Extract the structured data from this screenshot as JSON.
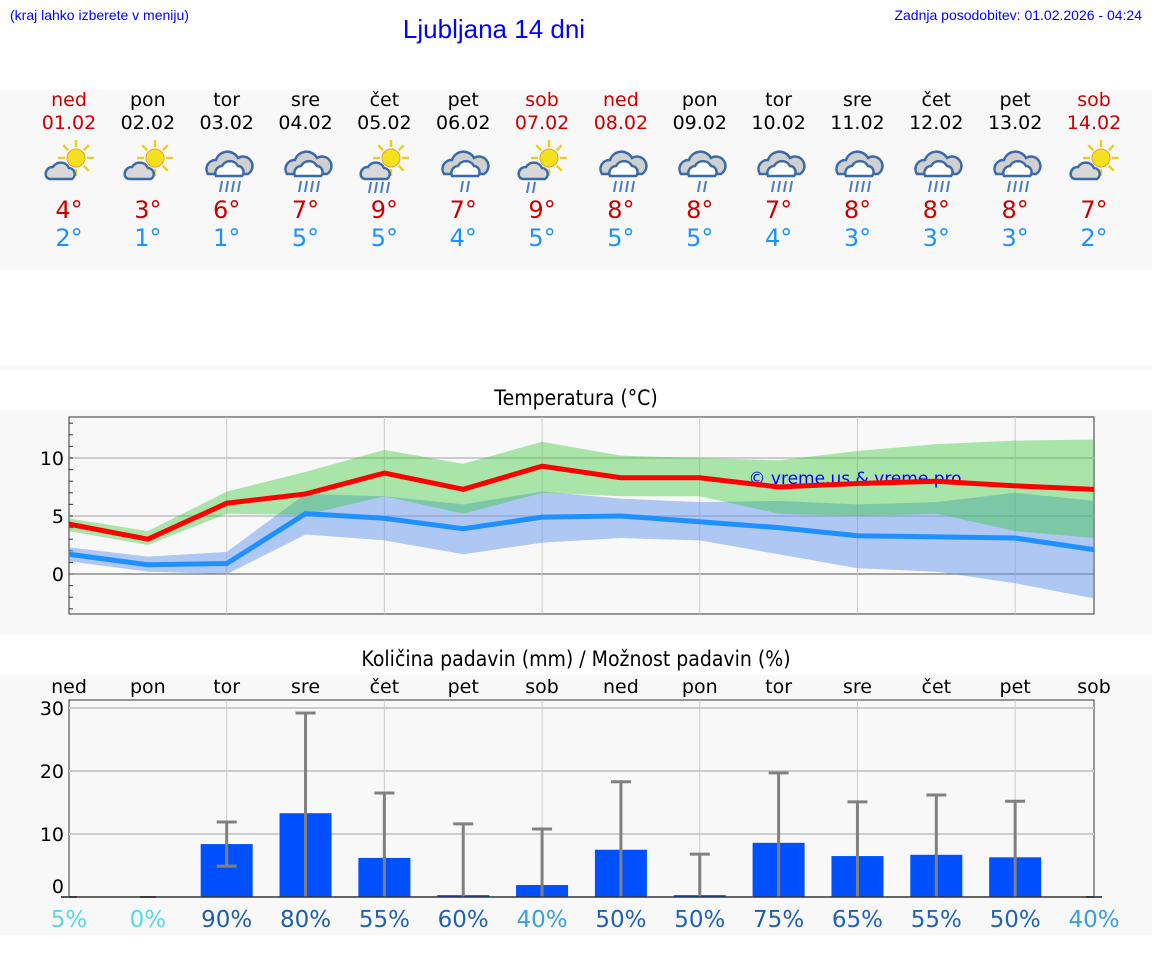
{
  "header": {
    "hint": "(kraj lahko izberete v meniju)",
    "title": "Ljubljana 14 dni",
    "updated": "Zadnja posodobitev: 01.02.2026 - 04:24"
  },
  "colors": {
    "weekend": "#cc0000",
    "weekday": "#000000",
    "max": "#ff0000",
    "min": "#1e90ff",
    "bar": "#0050ff"
  },
  "days": [
    {
      "name": "ned",
      "date": "01.02",
      "weekend": true,
      "icon": "partly-cloudy-icon",
      "max": "4°",
      "min": "2°"
    },
    {
      "name": "pon",
      "date": "02.02",
      "weekend": false,
      "icon": "partly-cloudy-icon",
      "max": "3°",
      "min": "1°"
    },
    {
      "name": "tor",
      "date": "03.02",
      "weekend": false,
      "icon": "rain-heavy-icon",
      "max": "6°",
      "min": "1°"
    },
    {
      "name": "sre",
      "date": "04.02",
      "weekend": false,
      "icon": "rain-heavy-icon",
      "max": "7°",
      "min": "5°"
    },
    {
      "name": "čet",
      "date": "05.02",
      "weekend": false,
      "icon": "sun-cloud-rain-heavy-icon",
      "max": "9°",
      "min": "5°"
    },
    {
      "name": "pet",
      "date": "06.02",
      "weekend": false,
      "icon": "rain-light-icon",
      "max": "7°",
      "min": "4°"
    },
    {
      "name": "sob",
      "date": "07.02",
      "weekend": true,
      "icon": "sun-cloud-rain-light-icon",
      "max": "9°",
      "min": "5°"
    },
    {
      "name": "ned",
      "date": "08.02",
      "weekend": true,
      "icon": "rain-heavy-icon",
      "max": "8°",
      "min": "5°"
    },
    {
      "name": "pon",
      "date": "09.02",
      "weekend": false,
      "icon": "rain-light-icon",
      "max": "8°",
      "min": "5°"
    },
    {
      "name": "tor",
      "date": "10.02",
      "weekend": false,
      "icon": "rain-heavy-icon",
      "max": "7°",
      "min": "4°"
    },
    {
      "name": "sre",
      "date": "11.02",
      "weekend": false,
      "icon": "rain-heavy-icon",
      "max": "8°",
      "min": "3°"
    },
    {
      "name": "čet",
      "date": "12.02",
      "weekend": false,
      "icon": "rain-heavy-icon",
      "max": "8°",
      "min": "3°"
    },
    {
      "name": "pet",
      "date": "13.02",
      "weekend": false,
      "icon": "rain-heavy-icon",
      "max": "8°",
      "min": "3°"
    },
    {
      "name": "sob",
      "date": "14.02",
      "weekend": true,
      "icon": "partly-cloudy-icon",
      "max": "7°",
      "min": "2°"
    }
  ],
  "chart_data": [
    {
      "type": "line",
      "title": "Temperatura (°C)",
      "ylim": [
        -3.5,
        13.5
      ],
      "yticks": [
        0,
        5,
        10
      ],
      "watermark": "© vreme.us & vreme.pro",
      "series": [
        {
          "name": "max",
          "values": [
            4.3,
            3.0,
            6.1,
            6.9,
            8.7,
            7.3,
            9.3,
            8.3,
            8.3,
            7.5,
            7.8,
            8.0,
            7.6,
            7.3
          ],
          "band_high": [
            4.8,
            3.7,
            7.1,
            8.8,
            10.7,
            9.5,
            11.4,
            10.2,
            10.0,
            9.8,
            10.6,
            11.2,
            11.5,
            11.6
          ],
          "band_low": [
            3.7,
            2.5,
            5.2,
            5.1,
            6.7,
            5.2,
            7.0,
            6.7,
            6.7,
            5.2,
            5.0,
            5.2,
            3.7,
            3.1
          ]
        },
        {
          "name": "min",
          "values": [
            1.7,
            0.8,
            0.9,
            5.2,
            4.8,
            3.9,
            4.9,
            5.0,
            4.5,
            4.0,
            3.3,
            3.2,
            3.1,
            2.1
          ],
          "band_high": [
            2.3,
            1.5,
            1.9,
            6.9,
            6.7,
            6.0,
            7.1,
            6.5,
            6.2,
            6.3,
            6.0,
            6.2,
            7.0,
            6.3
          ],
          "band_low": [
            1.1,
            0.2,
            0.0,
            3.4,
            2.9,
            1.7,
            2.7,
            3.1,
            2.9,
            1.7,
            0.5,
            0.2,
            -0.8,
            -2.1
          ]
        }
      ]
    },
    {
      "type": "bar",
      "title": "Količina padavin (mm) / Možnost padavin (%)",
      "ylim": [
        0,
        31
      ],
      "yticks": [
        0,
        10,
        20,
        30
      ],
      "categories": [
        "ned",
        "pon",
        "tor",
        "sre",
        "čet",
        "pet",
        "sob",
        "ned",
        "pon",
        "tor",
        "sre",
        "čet",
        "pet",
        "sob"
      ],
      "values": [
        0,
        0,
        8.4,
        13.3,
        6.2,
        0.3,
        1.9,
        7.5,
        0.3,
        8.6,
        6.5,
        6.7,
        6.3,
        0
      ],
      "err_high": [
        0,
        0,
        11.9,
        29.2,
        16.5,
        11.6,
        10.8,
        18.3,
        6.8,
        19.7,
        15.1,
        16.2,
        15.2,
        0
      ],
      "err_low": [
        0,
        0,
        4.9,
        0,
        0,
        0,
        0,
        0,
        0,
        0,
        0,
        0,
        0,
        0
      ],
      "probability": [
        {
          "label": "5%",
          "color": "#55d8e8"
        },
        {
          "label": "0%",
          "color": "#55d8e8"
        },
        {
          "label": "90%",
          "color": "#1f5fa8"
        },
        {
          "label": "80%",
          "color": "#1f5fa8"
        },
        {
          "label": "55%",
          "color": "#1f62b8"
        },
        {
          "label": "60%",
          "color": "#1f62b8"
        },
        {
          "label": "40%",
          "color": "#3a9ee0"
        },
        {
          "label": "50%",
          "color": "#1f62b8"
        },
        {
          "label": "50%",
          "color": "#1f62b8"
        },
        {
          "label": "75%",
          "color": "#1f5fa8"
        },
        {
          "label": "65%",
          "color": "#1f62b8"
        },
        {
          "label": "55%",
          "color": "#1f62b8"
        },
        {
          "label": "50%",
          "color": "#1f62b8"
        },
        {
          "label": "40%",
          "color": "#3a9ee0"
        }
      ]
    }
  ]
}
